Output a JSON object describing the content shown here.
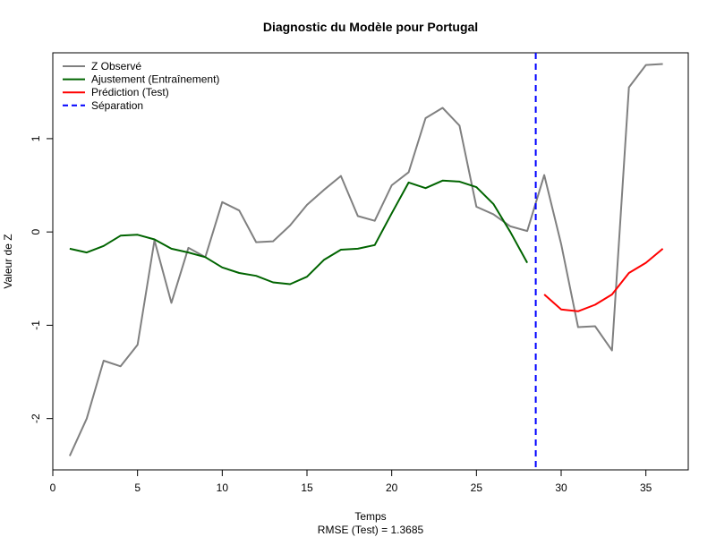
{
  "chart_data": {
    "type": "line",
    "title": "Diagnostic du Modèle pour Portugal",
    "xlabel": "Temps",
    "subtitle": "RMSE (Test) = 1.3685",
    "ylabel": "Valeur de Z",
    "xlim": [
      0,
      37.5
    ],
    "ylim": [
      -2.55,
      1.92
    ],
    "xticks": [
      0,
      5,
      10,
      15,
      20,
      25,
      30,
      35
    ],
    "yticks": [
      -2,
      -1,
      0,
      1
    ],
    "grid": false,
    "legend_position": "top-left",
    "separation_x": 28.5,
    "series": [
      {
        "name": "Z Observé",
        "color": "#808080",
        "dash": "solid",
        "x": [
          1,
          2,
          3,
          4,
          5,
          6,
          7,
          8,
          9,
          10,
          11,
          12,
          13,
          14,
          15,
          16,
          17,
          18,
          19,
          20,
          21,
          22,
          23,
          24,
          25,
          26,
          27,
          28,
          29,
          30,
          31,
          32,
          33,
          34,
          35,
          36
        ],
        "y": [
          -2.4,
          -2.0,
          -1.38,
          -1.44,
          -1.21,
          -0.09,
          -0.76,
          -0.17,
          -0.27,
          0.32,
          0.23,
          -0.11,
          -0.1,
          0.07,
          0.29,
          0.45,
          0.6,
          0.17,
          0.12,
          0.5,
          0.64,
          1.22,
          1.33,
          1.14,
          0.27,
          0.19,
          0.06,
          0.01,
          0.61,
          -0.13,
          -1.02,
          -1.01,
          -1.27,
          1.55,
          1.79,
          1.8
        ]
      },
      {
        "name": "Ajustement (Entraînement)",
        "color": "#006400",
        "dash": "solid",
        "x": [
          1,
          2,
          3,
          4,
          5,
          6,
          7,
          8,
          9,
          10,
          11,
          12,
          13,
          14,
          15,
          16,
          17,
          18,
          19,
          20,
          21,
          22,
          23,
          24,
          25,
          26,
          27,
          28
        ],
        "y": [
          -0.18,
          -0.22,
          -0.15,
          -0.04,
          -0.03,
          -0.08,
          -0.18,
          -0.22,
          -0.27,
          -0.38,
          -0.44,
          -0.47,
          -0.54,
          -0.56,
          -0.48,
          -0.3,
          -0.19,
          -0.18,
          -0.14,
          0.2,
          0.53,
          0.47,
          0.55,
          0.54,
          0.48,
          0.3,
          0.0,
          -0.33
        ]
      },
      {
        "name": "Prédiction (Test)",
        "color": "#ff0000",
        "dash": "solid",
        "x": [
          29,
          30,
          31,
          32,
          33,
          34,
          35,
          36
        ],
        "y": [
          -0.67,
          -0.83,
          -0.85,
          -0.78,
          -0.67,
          -0.44,
          -0.33,
          -0.18
        ]
      }
    ],
    "legend": [
      {
        "label": "Z Observé",
        "color": "#808080",
        "dash": "solid"
      },
      {
        "label": "Ajustement (Entraînement)",
        "color": "#006400",
        "dash": "solid"
      },
      {
        "label": "Prédiction (Test)",
        "color": "#ff0000",
        "dash": "solid"
      },
      {
        "label": "Séparation",
        "color": "#0000ff",
        "dash": "dashed"
      }
    ]
  }
}
